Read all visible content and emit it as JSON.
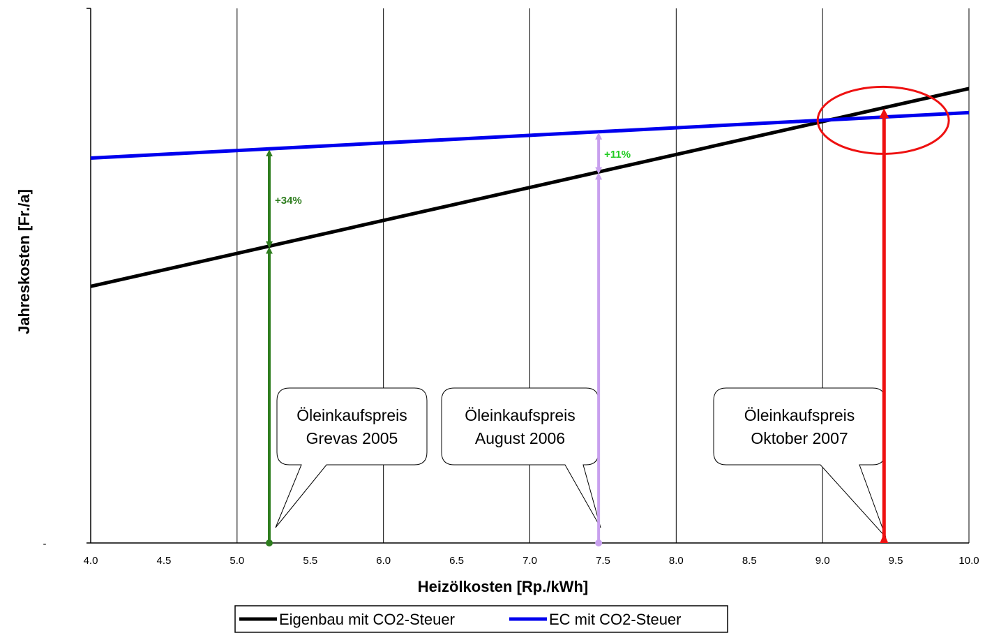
{
  "chart_data": {
    "type": "line",
    "xlabel": "Heizölkosten [Rp./kWh]",
    "ylabel": "Jahreskosten [Fr./a]",
    "xlim": [
      4.0,
      10.0
    ],
    "x_ticks": [
      "4.0",
      "4.5",
      "5.0",
      "5.5",
      "6.0",
      "6.5",
      "7.0",
      "7.5",
      "8.0",
      "8.5",
      "9.0",
      "9.5",
      "10.0"
    ],
    "y_tick_labels": [
      "-"
    ],
    "grid": "vertical lines every 1.0",
    "legend_position": "bottom",
    "series": [
      {
        "name": "Eigenbau mit CO2-Steuer",
        "color": "#000000",
        "x": [
          4.0,
          10.0
        ],
        "y": [
          0.48,
          0.85
        ]
      },
      {
        "name": "EC mit CO2-Steuer",
        "color": "#0000ee",
        "x": [
          4.0,
          10.0
        ],
        "y": [
          0.72,
          0.805
        ]
      }
    ],
    "markers": [
      {
        "x": 5.22,
        "color": "#2e7d1e",
        "pct_label": "+34%",
        "pct_color": "#2e7d1e",
        "callout": [
          "Öleinkaufspreis",
          "Grevas 2005"
        ]
      },
      {
        "x": 7.47,
        "color": "#c8a0ee",
        "pct_label": "+11%",
        "pct_color": "#22cc22",
        "callout": [
          "Öleinkaufspreis",
          "August 2006"
        ]
      },
      {
        "x": 9.42,
        "color": "#ee1111",
        "pct_label": "",
        "pct_color": "",
        "callout": [
          "Öleinkaufspreis",
          "Oktober 2007"
        ]
      }
    ],
    "highlight": {
      "shape": "ellipse",
      "color": "#ee1111",
      "around_x": 9.1
    }
  }
}
